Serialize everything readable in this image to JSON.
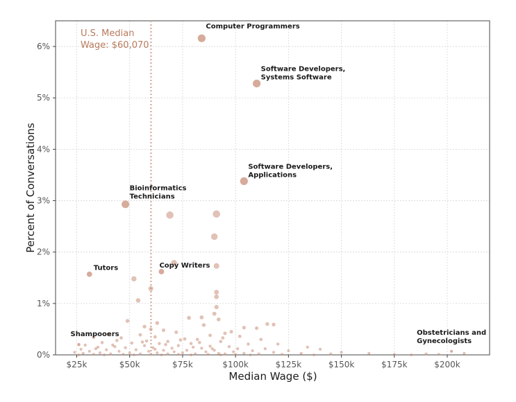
{
  "chart_data": {
    "type": "scatter",
    "title": "",
    "xlabel": "Median Wage ($)",
    "ylabel": "Percent of Conversations",
    "xlim": [
      15000,
      220000
    ],
    "ylim": [
      0,
      6.5
    ],
    "x_ticks": [
      {
        "value": 25000,
        "label": "$25k"
      },
      {
        "value": 50000,
        "label": "$50k"
      },
      {
        "value": 75000,
        "label": "$75k"
      },
      {
        "value": 100000,
        "label": "$100k"
      },
      {
        "value": 125000,
        "label": "$125k"
      },
      {
        "value": 150000,
        "label": "$150k"
      },
      {
        "value": 175000,
        "label": "$175k"
      },
      {
        "value": 200000,
        "label": "$200k"
      }
    ],
    "y_ticks": [
      {
        "value": 0,
        "label": "0%"
      },
      {
        "value": 1,
        "label": "1%"
      },
      {
        "value": 2,
        "label": "2%"
      },
      {
        "value": 3,
        "label": "3%"
      },
      {
        "value": 4,
        "label": "4%"
      },
      {
        "value": 5,
        "label": "5%"
      },
      {
        "value": 6,
        "label": "6%"
      }
    ],
    "grid": true,
    "reference_line": {
      "x": 60070,
      "label_line1": "U.S. Median",
      "label_line2": "Wage: $60,070"
    },
    "point_color": "#c88f7a",
    "labeled_points": [
      {
        "x": 84000,
        "y": 6.16,
        "lines": [
          "Computer Programmers"
        ]
      },
      {
        "x": 110000,
        "y": 5.28,
        "lines": [
          "Software Developers,",
          "Systems Software"
        ]
      },
      {
        "x": 104000,
        "y": 3.38,
        "lines": [
          "Software Developers,",
          "Applications"
        ]
      },
      {
        "x": 48000,
        "y": 2.93,
        "lines": [
          "Bioinformatics",
          "Technicians"
        ]
      },
      {
        "x": 31000,
        "y": 1.57,
        "lines": [
          "Tutors"
        ]
      },
      {
        "x": 65000,
        "y": 1.62,
        "lines": [
          "Copy Writers"
        ]
      },
      {
        "x": 26000,
        "y": 0.2,
        "lines": [
          "Shampooers"
        ]
      },
      {
        "x": 202000,
        "y": 0.07,
        "lines": [
          "Obstetricians and",
          "Gynecologists"
        ]
      }
    ],
    "points": [
      {
        "x": 69000,
        "y": 2.72
      },
      {
        "x": 91000,
        "y": 2.74
      },
      {
        "x": 90000,
        "y": 2.3
      },
      {
        "x": 91000,
        "y": 1.73
      },
      {
        "x": 71000,
        "y": 1.79
      },
      {
        "x": 52000,
        "y": 1.48
      },
      {
        "x": 60000,
        "y": 1.29
      },
      {
        "x": 91000,
        "y": 1.22
      },
      {
        "x": 91000,
        "y": 1.13
      },
      {
        "x": 54000,
        "y": 1.06
      },
      {
        "x": 91000,
        "y": 0.93
      },
      {
        "x": 90000,
        "y": 0.8
      },
      {
        "x": 78000,
        "y": 0.72
      },
      {
        "x": 84000,
        "y": 0.73
      },
      {
        "x": 92000,
        "y": 0.69
      },
      {
        "x": 49000,
        "y": 0.66
      },
      {
        "x": 115000,
        "y": 0.6
      },
      {
        "x": 118000,
        "y": 0.59
      },
      {
        "x": 85000,
        "y": 0.58
      },
      {
        "x": 104000,
        "y": 0.53
      },
      {
        "x": 110000,
        "y": 0.52
      },
      {
        "x": 60000,
        "y": 0.5
      },
      {
        "x": 66000,
        "y": 0.48
      },
      {
        "x": 98000,
        "y": 0.45
      },
      {
        "x": 72000,
        "y": 0.44
      },
      {
        "x": 40000,
        "y": 0.4
      },
      {
        "x": 95000,
        "y": 0.42
      },
      {
        "x": 55000,
        "y": 0.39
      },
      {
        "x": 88000,
        "y": 0.38
      },
      {
        "x": 102000,
        "y": 0.36
      },
      {
        "x": 33000,
        "y": 0.34
      },
      {
        "x": 46000,
        "y": 0.33
      },
      {
        "x": 62000,
        "y": 0.35
      },
      {
        "x": 76000,
        "y": 0.31
      },
      {
        "x": 82000,
        "y": 0.3
      },
      {
        "x": 112000,
        "y": 0.3
      },
      {
        "x": 44000,
        "y": 0.28
      },
      {
        "x": 58000,
        "y": 0.27
      },
      {
        "x": 68000,
        "y": 0.26
      },
      {
        "x": 93000,
        "y": 0.26
      },
      {
        "x": 37000,
        "y": 0.24
      },
      {
        "x": 51000,
        "y": 0.23
      },
      {
        "x": 64000,
        "y": 0.22
      },
      {
        "x": 79000,
        "y": 0.22
      },
      {
        "x": 106000,
        "y": 0.21
      },
      {
        "x": 120000,
        "y": 0.21
      },
      {
        "x": 29000,
        "y": 0.19
      },
      {
        "x": 42000,
        "y": 0.19
      },
      {
        "x": 57000,
        "y": 0.18
      },
      {
        "x": 73000,
        "y": 0.18
      },
      {
        "x": 88000,
        "y": 0.17
      },
      {
        "x": 97000,
        "y": 0.16
      },
      {
        "x": 134000,
        "y": 0.15
      },
      {
        "x": 35000,
        "y": 0.15
      },
      {
        "x": 48000,
        "y": 0.14
      },
      {
        "x": 61000,
        "y": 0.14
      },
      {
        "x": 70000,
        "y": 0.13
      },
      {
        "x": 84000,
        "y": 0.13
      },
      {
        "x": 101000,
        "y": 0.12
      },
      {
        "x": 114000,
        "y": 0.12
      },
      {
        "x": 140000,
        "y": 0.11
      },
      {
        "x": 27000,
        "y": 0.11
      },
      {
        "x": 39000,
        "y": 0.1
      },
      {
        "x": 53000,
        "y": 0.1
      },
      {
        "x": 66000,
        "y": 0.09
      },
      {
        "x": 77000,
        "y": 0.09
      },
      {
        "x": 90000,
        "y": 0.09
      },
      {
        "x": 108000,
        "y": 0.08
      },
      {
        "x": 125000,
        "y": 0.08
      },
      {
        "x": 31000,
        "y": 0.07
      },
      {
        "x": 45000,
        "y": 0.07
      },
      {
        "x": 59000,
        "y": 0.07
      },
      {
        "x": 71000,
        "y": 0.06
      },
      {
        "x": 86000,
        "y": 0.06
      },
      {
        "x": 99000,
        "y": 0.06
      },
      {
        "x": 118000,
        "y": 0.05
      },
      {
        "x": 150000,
        "y": 0.05
      },
      {
        "x": 24000,
        "y": 0.05
      },
      {
        "x": 36000,
        "y": 0.04
      },
      {
        "x": 50000,
        "y": 0.04
      },
      {
        "x": 63000,
        "y": 0.04
      },
      {
        "x": 75000,
        "y": 0.04
      },
      {
        "x": 92000,
        "y": 0.03
      },
      {
        "x": 104000,
        "y": 0.03
      },
      {
        "x": 131000,
        "y": 0.03
      },
      {
        "x": 163000,
        "y": 0.03
      },
      {
        "x": 28000,
        "y": 0.03
      },
      {
        "x": 41000,
        "y": 0.02
      },
      {
        "x": 55000,
        "y": 0.02
      },
      {
        "x": 68000,
        "y": 0.02
      },
      {
        "x": 81000,
        "y": 0.02
      },
      {
        "x": 95000,
        "y": 0.02
      },
      {
        "x": 111000,
        "y": 0.02
      },
      {
        "x": 145000,
        "y": 0.02
      },
      {
        "x": 190000,
        "y": 0.02
      },
      {
        "x": 208000,
        "y": 0.03
      },
      {
        "x": 33000,
        "y": 0.01
      },
      {
        "x": 47000,
        "y": 0.01
      },
      {
        "x": 60000,
        "y": 0.01
      },
      {
        "x": 73000,
        "y": 0.01
      },
      {
        "x": 87000,
        "y": 0.01
      },
      {
        "x": 100000,
        "y": 0.01
      },
      {
        "x": 122000,
        "y": 0.01
      },
      {
        "x": 175000,
        "y": 0.01
      },
      {
        "x": 196000,
        "y": 0.01
      },
      {
        "x": 26000,
        "y": 0.0
      },
      {
        "x": 38000,
        "y": 0.0
      },
      {
        "x": 52000,
        "y": 0.0
      },
      {
        "x": 65000,
        "y": 0.0
      },
      {
        "x": 79000,
        "y": 0.0
      },
      {
        "x": 93000,
        "y": 0.0
      },
      {
        "x": 107000,
        "y": 0.0
      },
      {
        "x": 137000,
        "y": 0.0
      },
      {
        "x": 183000,
        "y": 0.0
      },
      {
        "x": 34000,
        "y": 0.12
      },
      {
        "x": 43000,
        "y": 0.16
      },
      {
        "x": 56000,
        "y": 0.25
      },
      {
        "x": 62000,
        "y": 0.11
      },
      {
        "x": 67000,
        "y": 0.2
      },
      {
        "x": 74000,
        "y": 0.29
      },
      {
        "x": 80000,
        "y": 0.15
      },
      {
        "x": 83000,
        "y": 0.24
      },
      {
        "x": 89000,
        "y": 0.12
      },
      {
        "x": 94000,
        "y": 0.33
      },
      {
        "x": 57000,
        "y": 0.55
      },
      {
        "x": 63000,
        "y": 0.62
      }
    ]
  }
}
